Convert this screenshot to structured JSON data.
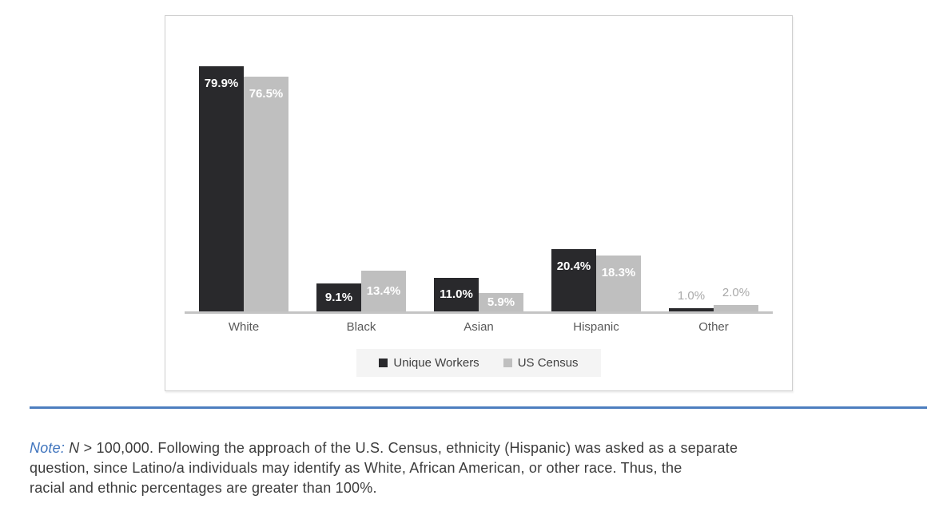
{
  "chart_data": {
    "type": "bar",
    "title": "",
    "xlabel": "",
    "ylabel": "",
    "categories": [
      "White",
      "Black",
      "Asian",
      "Hispanic",
      "Other"
    ],
    "series": [
      {
        "name": "Unique Workers",
        "color": "#29292c",
        "values": [
          79.9,
          9.1,
          11.0,
          20.4,
          1.0
        ]
      },
      {
        "name": "US Census",
        "color": "#bfbfbf",
        "values": [
          76.5,
          13.4,
          5.9,
          18.3,
          2.0
        ]
      }
    ],
    "value_labels": {
      "Unique Workers": [
        "79.9%",
        "9.1%",
        "11.0%",
        "20.4%",
        "1.0%"
      ],
      "US Census": [
        "76.5%",
        "13.4%",
        "5.9%",
        "18.3%",
        "2.0%"
      ]
    },
    "ylim": [
      0,
      96
    ],
    "grid": false,
    "axis_ticks_shown": false,
    "legend_position": "bottom"
  },
  "legend": {
    "items": [
      {
        "label": "Unique Workers",
        "color": "#29292c"
      },
      {
        "label": "US Census",
        "color": "#bfbfbf"
      }
    ]
  },
  "note": {
    "note_label": "Note:",
    "n_label": "N",
    "line1": "> 100,000. Following the approach of the U.S. Census, ethnicity (Hispanic) was asked as a separate",
    "line2": "question, since Latino/a individuals may identify as White, African American, or other race. Thus, the",
    "line3": "racial and ethnic percentages are greater than 100%."
  },
  "colors": {
    "dark_series": "#29292c",
    "gray_series": "#bfbfbf",
    "axis_line": "#c4c4c4",
    "outside_value_label": "#a9a9a9",
    "category_label": "#595959",
    "legend_background": "#f4f4f4",
    "divider_blue": "#4d7ebf",
    "note_blue": "#3f74bd",
    "note_text": "#3c3c3c"
  }
}
